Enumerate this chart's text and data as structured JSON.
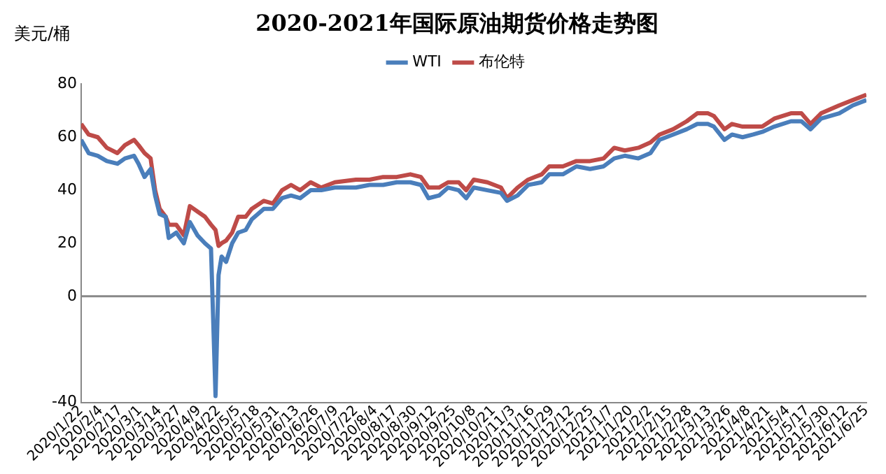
{
  "chart_data": {
    "type": "line",
    "title": "2020-2021年国际原油期货价格走势图",
    "ylabel": "美元/桶",
    "x": [
      "2020-01-22",
      "2020-01-27",
      "2020-02-02",
      "2020-02-08",
      "2020-02-15",
      "2020-02-20",
      "2020-02-26",
      "2020-02-29",
      "2020-03-04",
      "2020-03-08",
      "2020-03-11",
      "2020-03-14",
      "2020-03-18",
      "2020-03-20",
      "2020-03-25",
      "2020-03-30",
      "2020-04-03",
      "2020-04-08",
      "2020-04-13",
      "2020-04-17",
      "2020-04-20",
      "2020-04-22",
      "2020-04-24",
      "2020-04-27",
      "2020-05-01",
      "2020-05-05",
      "2020-05-10",
      "2020-05-14",
      "2020-05-22",
      "2020-05-28",
      "2020-06-03",
      "2020-06-09",
      "2020-06-15",
      "2020-06-22",
      "2020-06-29",
      "2020-07-08",
      "2020-07-22",
      "2020-07-31",
      "2020-08-09",
      "2020-08-18",
      "2020-08-27",
      "2020-09-03",
      "2020-09-08",
      "2020-09-15",
      "2020-09-21",
      "2020-09-28",
      "2020-10-03",
      "2020-10-08",
      "2020-10-17",
      "2020-10-26",
      "2020-10-30",
      "2020-11-06",
      "2020-11-13",
      "2020-11-22",
      "2020-11-27",
      "2020-12-06",
      "2020-12-15",
      "2020-12-24",
      "2021-01-02",
      "2021-01-09",
      "2021-01-16",
      "2021-01-25",
      "2021-02-02",
      "2021-02-08",
      "2021-02-17",
      "2021-02-26",
      "2021-03-05",
      "2021-03-12",
      "2021-03-16",
      "2021-03-23",
      "2021-03-28",
      "2021-04-04",
      "2021-04-11",
      "2021-04-17",
      "2021-04-25",
      "2021-05-06",
      "2021-05-13",
      "2021-05-19",
      "2021-05-26",
      "2021-06-07",
      "2021-06-16",
      "2021-06-25"
    ],
    "series": [
      {
        "name": "WTI",
        "color": "#4a7ebb",
        "values": [
          59,
          54,
          53,
          51,
          50,
          52,
          53,
          50,
          45,
          48,
          38,
          31,
          30,
          22,
          24,
          20,
          28,
          23,
          20,
          18,
          -37.6,
          8,
          15,
          13,
          20,
          24,
          25,
          29,
          33,
          33,
          37,
          38,
          37,
          40,
          40,
          41,
          41,
          42,
          42,
          43,
          43,
          42,
          37,
          38,
          41,
          40,
          37,
          41,
          40,
          39,
          36,
          38,
          42,
          43,
          46,
          46,
          49,
          48,
          49,
          52,
          53,
          52,
          54,
          59,
          61,
          63,
          65,
          65,
          64,
          59,
          61,
          60,
          61,
          62,
          64,
          66,
          66,
          63,
          67,
          69,
          72,
          74
        ]
      },
      {
        "name": "布伦特",
        "color": "#be4b48",
        "values": [
          65,
          61,
          60,
          56,
          54,
          57,
          59,
          57,
          54,
          52,
          40,
          33,
          30,
          27,
          27,
          23,
          34,
          32,
          30,
          27,
          25,
          19,
          20,
          21,
          24,
          30,
          30,
          33,
          36,
          35,
          40,
          42,
          40,
          43,
          41,
          43,
          44,
          44,
          45,
          45,
          46,
          45,
          41,
          41,
          43,
          43,
          40,
          44,
          43,
          41,
          37,
          41,
          44,
          46,
          49,
          49,
          51,
          51,
          52,
          56,
          55,
          56,
          58,
          61,
          63,
          66,
          69,
          69,
          68,
          63,
          65,
          64,
          64,
          64,
          67,
          69,
          69,
          65,
          69,
          72,
          74,
          76
        ]
      }
    ],
    "xlim": [
      "2020-01-22",
      "2021-06-25"
    ],
    "xticks": [
      {
        "value": "2020-01-22",
        "label": "2020/1/22"
      },
      {
        "value": "2020-02-04",
        "label": "2020/2/4"
      },
      {
        "value": "2020-02-17",
        "label": "2020/2/17"
      },
      {
        "value": "2020-03-01",
        "label": "2020/3/1"
      },
      {
        "value": "2020-03-14",
        "label": "2020/3/14"
      },
      {
        "value": "2020-03-27",
        "label": "2020/3/27"
      },
      {
        "value": "2020-04-09",
        "label": "2020/4/9"
      },
      {
        "value": "2020-04-22",
        "label": "2020/4/22"
      },
      {
        "value": "2020-05-05",
        "label": "2020/5/5"
      },
      {
        "value": "2020-05-18",
        "label": "2020/5/18"
      },
      {
        "value": "2020-05-31",
        "label": "2020/5/31"
      },
      {
        "value": "2020-06-13",
        "label": "2020/6/13"
      },
      {
        "value": "2020-06-26",
        "label": "2020/6/26"
      },
      {
        "value": "2020-07-09",
        "label": "2020/7/9"
      },
      {
        "value": "2020-07-22",
        "label": "2020/7/22"
      },
      {
        "value": "2020-08-04",
        "label": "2020/8/4"
      },
      {
        "value": "2020-08-17",
        "label": "2020/8/17"
      },
      {
        "value": "2020-08-30",
        "label": "2020/8/30"
      },
      {
        "value": "2020-09-12",
        "label": "2020/9/12"
      },
      {
        "value": "2020-09-25",
        "label": "2020/9/25"
      },
      {
        "value": "2020-10-08",
        "label": "2020/10/8"
      },
      {
        "value": "2020-10-21",
        "label": "2020/10/21"
      },
      {
        "value": "2020-11-03",
        "label": "2020/11/3"
      },
      {
        "value": "2020-11-16",
        "label": "2020/11/16"
      },
      {
        "value": "2020-11-29",
        "label": "2020/11/29"
      },
      {
        "value": "2020-12-12",
        "label": "2020/12/12"
      },
      {
        "value": "2020-12-25",
        "label": "2020/12/25"
      },
      {
        "value": "2021-01-07",
        "label": "2021/1/7"
      },
      {
        "value": "2021-01-20",
        "label": "2021/1/20"
      },
      {
        "value": "2021-02-02",
        "label": "2021/2/2"
      },
      {
        "value": "2021-02-15",
        "label": "2021/2/15"
      },
      {
        "value": "2021-02-28",
        "label": "2021/2/28"
      },
      {
        "value": "2021-03-13",
        "label": "2021/3/13"
      },
      {
        "value": "2021-03-26",
        "label": "2021/3/26"
      },
      {
        "value": "2021-04-08",
        "label": "2021/4/8"
      },
      {
        "value": "2021-04-21",
        "label": "2021/4/21"
      },
      {
        "value": "2021-05-04",
        "label": "2021/5/4"
      },
      {
        "value": "2021-05-17",
        "label": "2021/5/17"
      },
      {
        "value": "2021-05-30",
        "label": "2021/5/30"
      },
      {
        "value": "2021-06-12",
        "label": "2021/6/12"
      },
      {
        "value": "2021-06-25",
        "label": "2021/6/25"
      }
    ],
    "ylim": [
      -40,
      80
    ],
    "yticks": [
      -40,
      0,
      20,
      40,
      60,
      80
    ],
    "ref_lines": [
      {
        "axis": "y",
        "value": 0,
        "color": "#888888"
      }
    ],
    "grid": false,
    "legend": "top",
    "marker": "none",
    "line_style": "solid"
  }
}
